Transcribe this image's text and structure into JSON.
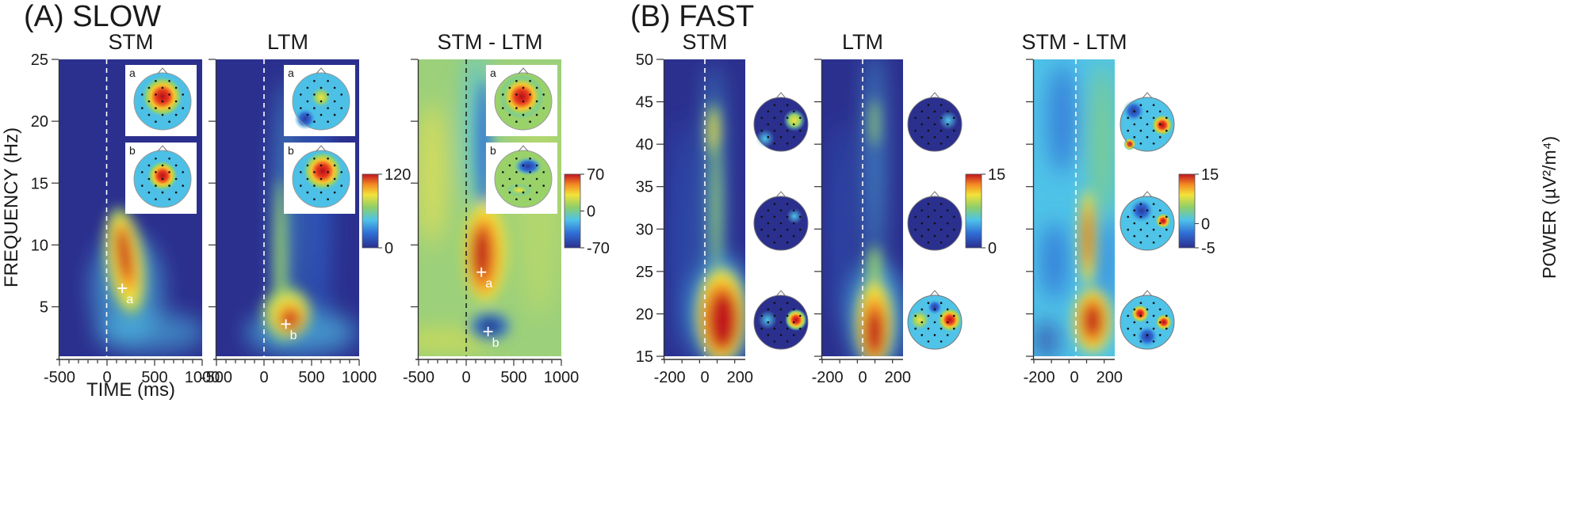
{
  "figure": {
    "panel_a_label": "(A) SLOW",
    "panel_b_label": "(B) FAST",
    "y_label_slow": "FREQUENCY (Hz)",
    "x_label_slow": "TIME (ms)",
    "power_label": "POWER (µV²/m⁴)"
  },
  "chart_data": [
    {
      "id": "slow-stm",
      "type": "heatmap",
      "title": "STM",
      "x_ticks": [
        -500,
        0,
        500,
        1000
      ],
      "xlim": [
        -500,
        1000
      ],
      "y_ticks": [
        5,
        10,
        15,
        20,
        25
      ],
      "ylim": [
        1,
        25
      ],
      "colorbar": null,
      "markers": [
        {
          "label": "a",
          "time": 160,
          "freq": 6.5
        }
      ],
      "insets": [
        "a",
        "b"
      ]
    },
    {
      "id": "slow-ltm",
      "type": "heatmap",
      "title": "LTM",
      "x_ticks": [
        -500,
        0,
        500,
        1000
      ],
      "xlim": [
        -500,
        1000
      ],
      "y_ticks": [
        5,
        10,
        15,
        20,
        25
      ],
      "ylim": [
        1,
        25
      ],
      "colorbar": {
        "ticks": [
          "120",
          "0"
        ],
        "max": 120,
        "min": 0
      },
      "markers": [
        {
          "label": "b",
          "time": 230,
          "freq": 3.6
        }
      ],
      "insets": [
        "a",
        "b"
      ]
    },
    {
      "id": "slow-diff",
      "type": "heatmap",
      "title": "STM - LTM",
      "x_ticks": [
        -500,
        0,
        500,
        1000
      ],
      "xlim": [
        -500,
        1000
      ],
      "y_ticks": [
        5,
        10,
        15,
        20,
        25
      ],
      "ylim": [
        1,
        25
      ],
      "colorbar": {
        "ticks": [
          "70",
          "0",
          "-70"
        ],
        "max": 70,
        "min": -70
      },
      "markers": [
        {
          "label": "a",
          "time": 160,
          "freq": 7.8
        },
        {
          "label": "b",
          "time": 230,
          "freq": 3.0
        }
      ],
      "insets": [
        "a",
        "b"
      ]
    },
    {
      "id": "fast-stm",
      "type": "heatmap",
      "title": "STM",
      "x_ticks": [
        -200,
        0,
        200
      ],
      "xlim": [
        -230,
        230
      ],
      "y_ticks": [
        15,
        20,
        25,
        30,
        35,
        40,
        45,
        50
      ],
      "ylim": [
        15,
        50
      ],
      "colorbar": null,
      "markers": [],
      "topomaps": 3
    },
    {
      "id": "fast-ltm",
      "type": "heatmap",
      "title": "LTM",
      "x_ticks": [
        -200,
        0,
        200
      ],
      "xlim": [
        -230,
        230
      ],
      "y_ticks": [
        15,
        20,
        25,
        30,
        35,
        40,
        45,
        50
      ],
      "ylim": [
        15,
        50
      ],
      "colorbar": {
        "ticks": [
          "15",
          "0"
        ],
        "max": 15,
        "min": 0
      },
      "markers": [],
      "topomaps": 3
    },
    {
      "id": "fast-diff",
      "type": "heatmap",
      "title": "STM - LTM",
      "x_ticks": [
        -200,
        0,
        200
      ],
      "xlim": [
        -230,
        230
      ],
      "y_ticks": [
        15,
        20,
        25,
        30,
        35,
        40,
        45,
        50
      ],
      "ylim": [
        15,
        50
      ],
      "colorbar": {
        "ticks": [
          "15",
          "0",
          "-5"
        ],
        "max": 15,
        "min": -5
      },
      "markers": [],
      "topomaps": 3
    }
  ],
  "colors": {
    "low": "#2b2f8e",
    "mid": "#7cc46a",
    "high": "#c1121f",
    "axis": "#333333"
  }
}
